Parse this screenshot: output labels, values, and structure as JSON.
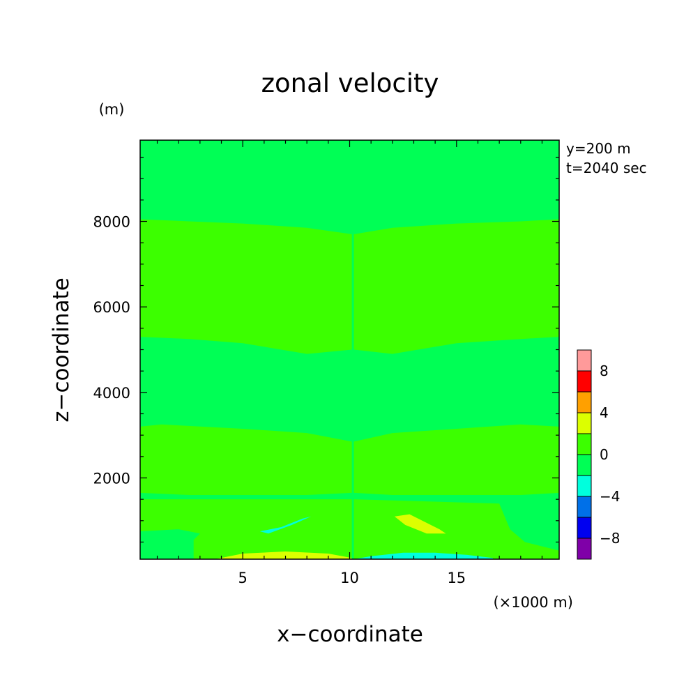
{
  "chart_data": {
    "type": "heatmap",
    "title": "zonal velocity",
    "xlabel": "x−coordinate",
    "ylabel": "z−coordinate",
    "x_unit": "(×1000 m)",
    "y_unit": "(m)",
    "annotations": [
      "y=200 m",
      "t=2040 sec"
    ],
    "xlim": [
      0.2,
      19.8
    ],
    "ylim": [
      100,
      9900
    ],
    "x_ticks": [
      5,
      10,
      15
    ],
    "y_ticks": [
      2000,
      4000,
      6000,
      8000
    ],
    "colorbar": {
      "levels": [
        -10,
        -8,
        -6,
        -4,
        -2,
        0,
        2,
        4,
        6,
        8,
        10
      ],
      "colors": [
        "#7f00a8",
        "#0000f0",
        "#0070e8",
        "#00ffdd",
        "#00ff55",
        "#3cff00",
        "#dcff00",
        "#ffa000",
        "#ff0000",
        "#ff9a9a"
      ],
      "tick_labels": [
        "−8",
        "−4",
        "0",
        "4",
        "8"
      ],
      "tick_values": [
        -8,
        -4,
        0,
        4,
        8
      ]
    },
    "background_value": -1,
    "regions": [
      {
        "value": 1,
        "x": [
          0.2,
          2.5,
          5,
          8,
          10.1,
          10.1,
          8,
          5,
          2.5,
          0.2
        ],
        "y": [
          8050,
          8000,
          7950,
          7850,
          7700,
          5000,
          4900,
          5150,
          5250,
          5300
        ]
      },
      {
        "value": 1,
        "x": [
          10.2,
          12,
          15,
          18,
          19.8,
          19.8,
          18,
          15,
          12,
          10.2
        ],
        "y": [
          7700,
          7850,
          7950,
          8000,
          8050,
          5300,
          5250,
          5150,
          4900,
          5000
        ]
      },
      {
        "value": 1,
        "x": [
          0.2,
          1.2,
          5,
          8,
          10.1,
          10.1,
          8,
          5,
          2.5,
          0.2
        ],
        "y": [
          3200,
          3250,
          3150,
          3050,
          2850,
          1650,
          1600,
          1600,
          1600,
          1650
        ]
      },
      {
        "value": 1,
        "x": [
          10.2,
          12,
          15,
          18,
          19.8,
          19.8,
          18,
          15,
          12,
          10.2
        ],
        "y": [
          2850,
          3050,
          3150,
          3250,
          3200,
          1650,
          1600,
          1600,
          1600,
          1650
        ]
      },
      {
        "value": 1,
        "x": [
          0.2,
          2,
          3,
          2.7,
          2.7,
          10.1,
          10.1,
          0.2
        ],
        "y": [
          750,
          800,
          700,
          550,
          100,
          100,
          1500,
          1500
        ]
      },
      {
        "value": 1,
        "x": [
          10.2,
          17,
          17.5,
          18.2,
          19.8,
          19.8,
          10.2
        ],
        "y": [
          1500,
          1400,
          800,
          500,
          300,
          100,
          100
        ]
      },
      {
        "value": -3,
        "x": [
          5.8,
          6.8,
          7.8,
          8.2,
          7.3,
          6.2,
          5.8
        ],
        "y": [
          750,
          850,
          1050,
          1100,
          900,
          700,
          750
        ]
      },
      {
        "value": 3,
        "x": [
          12.1,
          12.8,
          14.2,
          14.5,
          13.6,
          12.6,
          12.1
        ],
        "y": [
          1100,
          1150,
          800,
          700,
          700,
          900,
          1100
        ]
      },
      {
        "value": 3,
        "x": [
          3.7,
          5,
          7,
          9,
          10.1,
          10.1,
          3.7
        ],
        "y": [
          100,
          230,
          280,
          230,
          130,
          100,
          100
        ]
      },
      {
        "value": -3,
        "x": [
          10.2,
          11,
          12.5,
          14,
          15.5,
          16.7,
          16.7,
          10.2
        ],
        "y": [
          100,
          170,
          250,
          250,
          200,
          130,
          100,
          100
        ]
      },
      {
        "value": -1,
        "x": [
          2.7,
          6,
          10.1,
          10.1,
          2.7
        ],
        "y": [
          100,
          100,
          100,
          100,
          100
        ]
      }
    ]
  }
}
